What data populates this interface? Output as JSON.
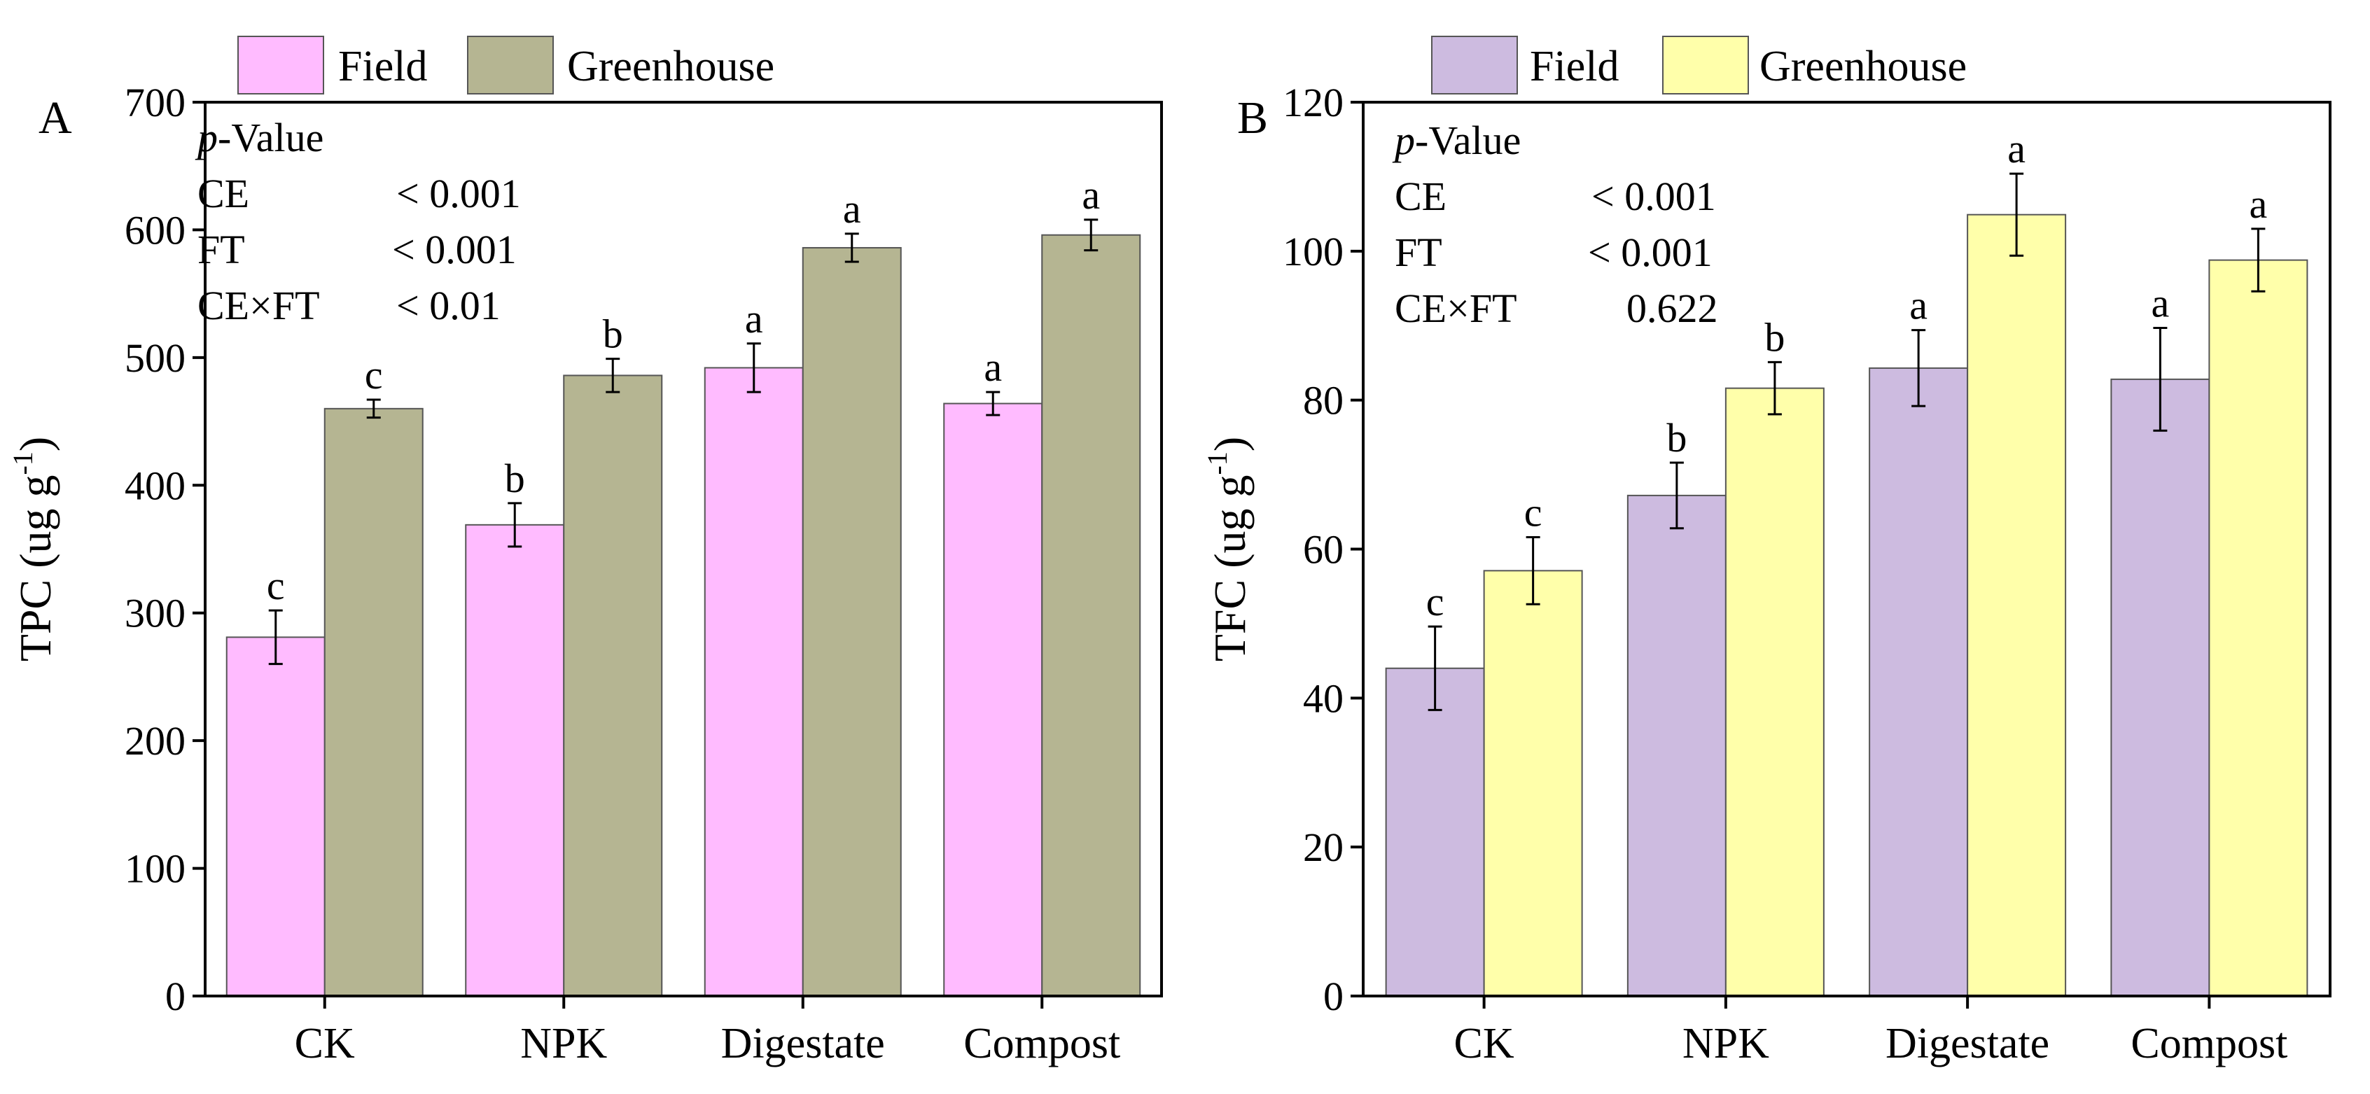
{
  "chart_data": [
    {
      "type": "bar",
      "panel_label": "A",
      "ylabel": "TPC (ug g",
      "ylabel_sup": "-1",
      "ylabel_close": ")",
      "categories": [
        "CK",
        "NPK",
        "Digestate",
        "Compost"
      ],
      "ylim": [
        0,
        700
      ],
      "yticks": [
        0,
        100,
        200,
        300,
        400,
        500,
        600,
        700
      ],
      "legend_position": "top",
      "series": [
        {
          "name": "Field",
          "color": "#FFBBFF",
          "values": [
            281,
            369,
            492,
            464
          ],
          "errors": [
            21,
            17,
            19,
            9
          ],
          "letters": [
            "c",
            "b",
            "a",
            "a"
          ]
        },
        {
          "name": "Greenhouse",
          "color": "#B5B592",
          "values": [
            460,
            486,
            586,
            596
          ],
          "errors": [
            7,
            13,
            11,
            12
          ],
          "letters": [
            "c",
            "b",
            "a",
            "a"
          ]
        }
      ],
      "pvalue_table": {
        "header_italic": "p",
        "header_rest": "-Value",
        "rows": [
          {
            "term": "CE",
            "value": "< 0.001"
          },
          {
            "term": "FT",
            "value": "< 0.001"
          },
          {
            "term": "CE×FT",
            "value": "< 0.01"
          }
        ]
      }
    },
    {
      "type": "bar",
      "panel_label": "B",
      "ylabel": "TFC (ug g",
      "ylabel_sup": "-1",
      "ylabel_close": ")",
      "categories": [
        "CK",
        "NPK",
        "Digestate",
        "Compost"
      ],
      "ylim": [
        0,
        120
      ],
      "yticks": [
        0,
        20,
        40,
        60,
        80,
        100,
        120
      ],
      "legend_position": "top",
      "series": [
        {
          "name": "Field",
          "color": "#CDBBE0",
          "values": [
            44,
            67.2,
            84.3,
            82.8
          ],
          "errors": [
            5.6,
            4.4,
            5.1,
            6.9
          ],
          "letters": [
            "c",
            "b",
            "a",
            "a"
          ]
        },
        {
          "name": "Greenhouse",
          "color": "#FFFFAA",
          "values": [
            57.1,
            81.6,
            104.9,
            98.8
          ],
          "errors": [
            4.5,
            3.5,
            5.5,
            4.2
          ],
          "letters": [
            "c",
            "b",
            "a",
            "a"
          ]
        }
      ],
      "pvalue_table": {
        "header_italic": "p",
        "header_rest": "-Value",
        "rows": [
          {
            "term": "CE",
            "value": "< 0.001"
          },
          {
            "term": "FT",
            "value": "< 0.001"
          },
          {
            "term": "CE×FT",
            "value": "0.622"
          }
        ]
      }
    }
  ]
}
